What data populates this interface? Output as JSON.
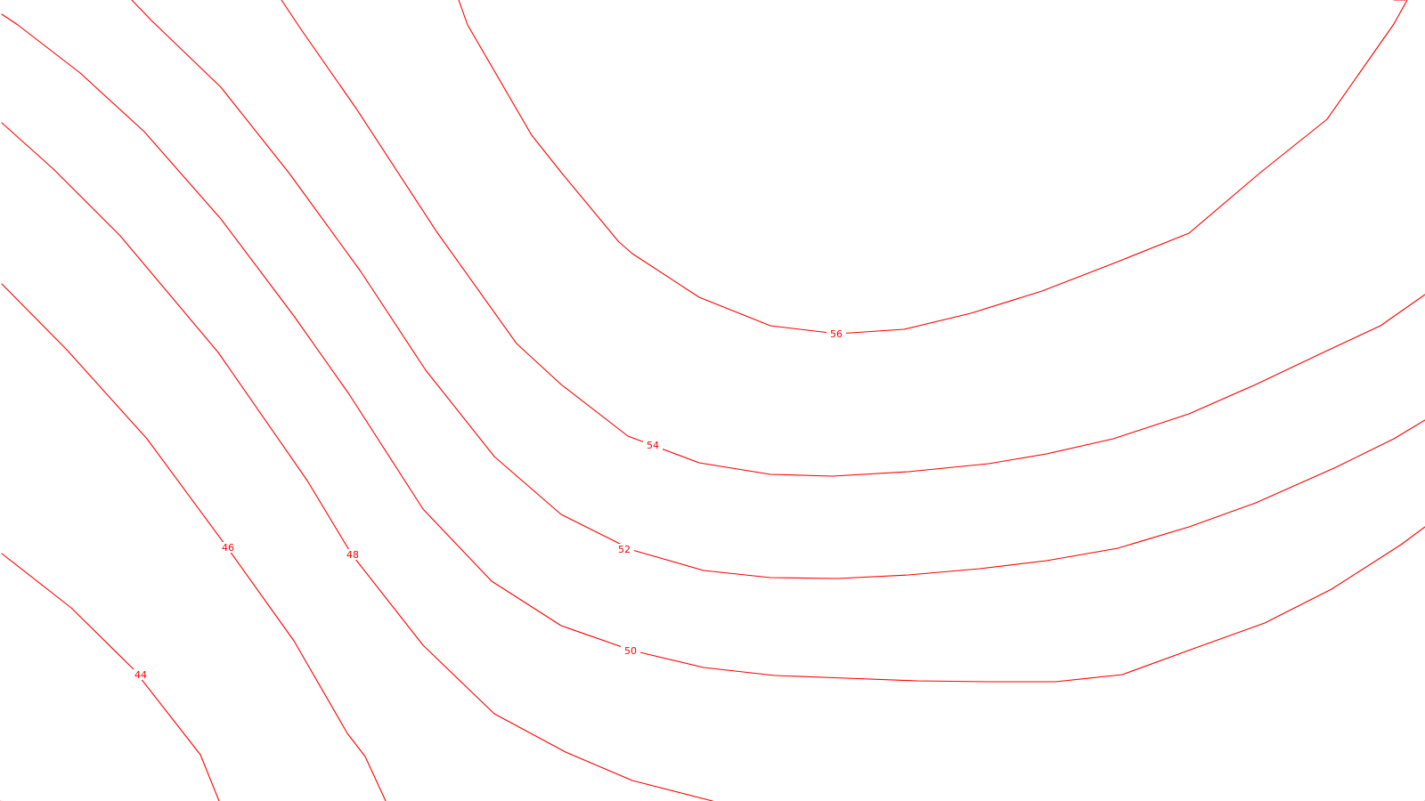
{
  "style": {
    "contour_color": "#ff0000",
    "background": "#ffffff"
  },
  "contours": [
    {
      "name": "contour-44",
      "label": "44"
    },
    {
      "name": "contour-46",
      "label": "46"
    },
    {
      "name": "contour-48",
      "label": "48"
    },
    {
      "name": "contour-50",
      "label": "50"
    },
    {
      "name": "contour-52",
      "label": "52"
    },
    {
      "name": "contour-54",
      "label": "54"
    },
    {
      "name": "contour-56",
      "label": "56"
    },
    {
      "name": "contour-unlabeled-a",
      "label": ""
    },
    {
      "name": "contour-unlabeled-b",
      "label": ""
    },
    {
      "name": "contour-unlabeled-c",
      "label": ""
    }
  ]
}
